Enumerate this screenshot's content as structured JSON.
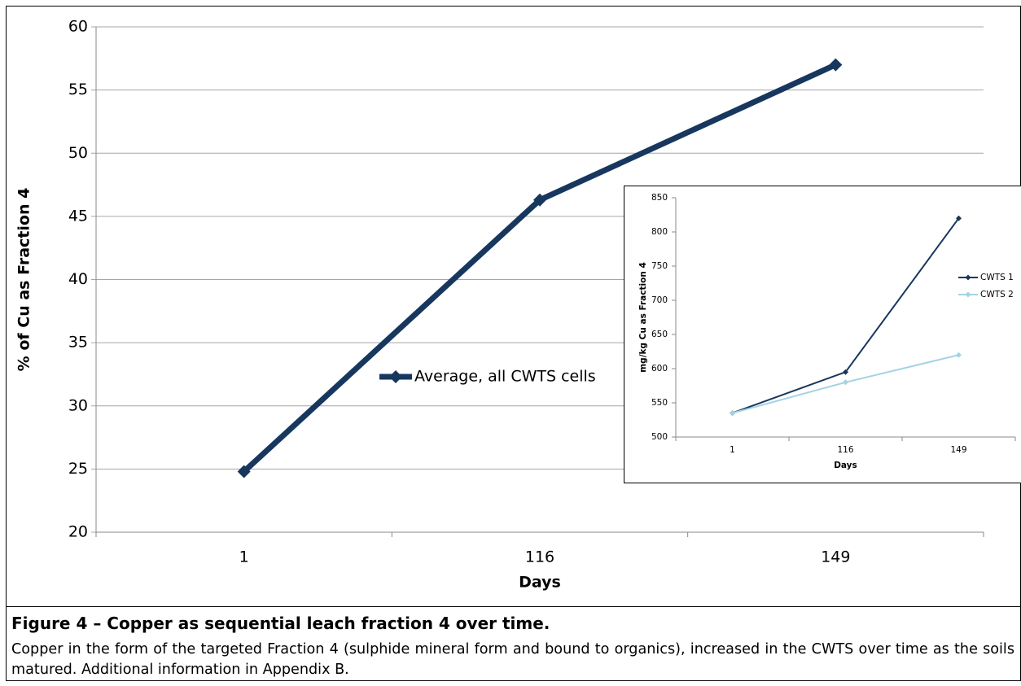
{
  "chart_data": [
    {
      "type": "line",
      "x_label": "Days",
      "y_label": "% of Cu as Fraction 4",
      "categories": [
        "1",
        "116",
        "149"
      ],
      "series": [
        {
          "name": "Average, all CWTS cells",
          "color": "#17375e",
          "values": [
            24.8,
            46.3,
            57.0
          ]
        }
      ],
      "ylim": [
        20,
        60
      ],
      "yticks": [
        20,
        25,
        30,
        35,
        40,
        45,
        50,
        55,
        60
      ],
      "grid": true,
      "legend": "center"
    },
    {
      "type": "line",
      "x_label": "Days",
      "y_label": "mg/kg Cu as Fraction 4",
      "categories": [
        "1",
        "116",
        "149"
      ],
      "series": [
        {
          "name": "CWTS 1",
          "color": "#17375e",
          "values": [
            535,
            595,
            820
          ]
        },
        {
          "name": "CWTS 2",
          "color": "#a3d3e3",
          "values": [
            535,
            580,
            620
          ]
        }
      ],
      "ylim": [
        500,
        850
      ],
      "yticks": [
        500,
        550,
        600,
        650,
        700,
        750,
        800,
        850
      ],
      "grid": false,
      "legend": "right"
    }
  ],
  "caption": {
    "title": "Figure 4 – Copper as sequential leach fraction 4 over time.",
    "text": "Copper in the form of the targeted Fraction 4 (sulphide mineral form and bound to organics), increased in the CWTS over time as the soils matured.  Additional information in Appendix B."
  }
}
